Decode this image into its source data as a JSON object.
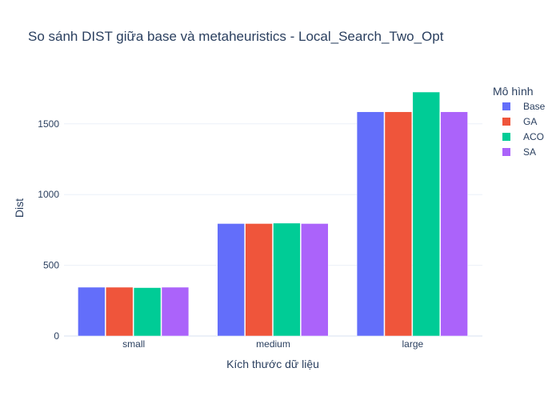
{
  "chart_data": {
    "type": "bar",
    "title": "So sánh DIST giữa base và metaheuristics - Local_Search_Two_Opt",
    "xlabel": "Kích thước dữ liệu",
    "ylabel": "Dist",
    "categories": [
      "small",
      "medium",
      "large"
    ],
    "ylim": [
      0,
      1810
    ],
    "yticks": [
      0,
      500,
      1000,
      1500
    ],
    "grid": true,
    "legend_title": "Mô hình",
    "legend_position": "right",
    "series": [
      {
        "name": "Base",
        "color": "#636efa",
        "values": [
          345,
          795,
          1585
        ]
      },
      {
        "name": "GA",
        "color": "#ef553b",
        "values": [
          345,
          795,
          1585
        ]
      },
      {
        "name": "ACO",
        "color": "#00cc96",
        "values": [
          342,
          798,
          1725
        ]
      },
      {
        "name": "SA",
        "color": "#ab63fa",
        "values": [
          345,
          795,
          1585
        ]
      }
    ]
  }
}
